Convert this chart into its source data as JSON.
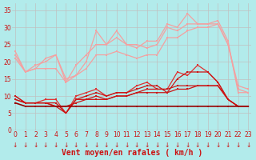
{
  "xlabel": "Vent moyen/en rafales ( km/h )",
  "bg_color": "#b2ebeb",
  "grid_color": "#c0c0c0",
  "x": [
    0,
    1,
    2,
    3,
    4,
    5,
    6,
    7,
    8,
    9,
    10,
    11,
    12,
    13,
    14,
    15,
    16,
    17,
    18,
    19,
    20,
    21,
    22,
    23
  ],
  "series": [
    {
      "y": [
        23,
        17,
        18,
        21,
        22,
        15,
        16,
        20,
        29,
        25,
        29,
        25,
        24,
        26,
        26,
        31,
        30,
        34,
        31,
        31,
        32,
        26,
        11,
        11
      ],
      "color": "#f4a0a0",
      "lw": 0.9,
      "ms": 2.0
    },
    {
      "y": [
        22,
        17,
        19,
        20,
        22,
        14,
        19,
        22,
        25,
        25,
        27,
        25,
        25,
        24,
        25,
        30,
        29,
        31,
        31,
        31,
        31,
        25,
        12,
        11
      ],
      "color": "#f4a0a0",
      "lw": 0.9,
      "ms": 2.0
    },
    {
      "y": [
        21,
        17,
        18,
        18,
        18,
        14,
        16,
        18,
        22,
        22,
        23,
        22,
        21,
        22,
        22,
        27,
        27,
        29,
        30,
        30,
        31,
        25,
        13,
        12
      ],
      "color": "#f4a0a0",
      "lw": 0.9,
      "ms": 2.0
    },
    {
      "y": [
        10,
        8,
        8,
        9,
        9,
        5,
        10,
        11,
        12,
        10,
        11,
        11,
        13,
        14,
        12,
        12,
        17,
        16,
        19,
        17,
        14,
        9,
        7,
        7
      ],
      "color": "#e03030",
      "lw": 0.9,
      "ms": 2.0
    },
    {
      "y": [
        10,
        8,
        8,
        8,
        8,
        5,
        9,
        10,
        11,
        10,
        11,
        11,
        12,
        13,
        13,
        11,
        15,
        17,
        17,
        17,
        14,
        9,
        7,
        7
      ],
      "color": "#cc1515",
      "lw": 0.9,
      "ms": 2.0
    },
    {
      "y": [
        9,
        8,
        8,
        8,
        7,
        5,
        9,
        9,
        10,
        9,
        10,
        10,
        11,
        12,
        12,
        12,
        13,
        13,
        13,
        13,
        13,
        9,
        7,
        7
      ],
      "color": "#cc1515",
      "lw": 0.9,
      "ms": 2.0
    },
    {
      "y": [
        9,
        8,
        8,
        8,
        7,
        7,
        8,
        9,
        9,
        9,
        10,
        10,
        11,
        11,
        11,
        11,
        12,
        12,
        13,
        13,
        13,
        9,
        7,
        7
      ],
      "color": "#cc1515",
      "lw": 0.9,
      "ms": 2.0
    },
    {
      "y": [
        8,
        7,
        7,
        7,
        7,
        7,
        7,
        7,
        7,
        7,
        7,
        7,
        7,
        7,
        7,
        7,
        7,
        7,
        7,
        7,
        7,
        7,
        7,
        7
      ],
      "color": "#990000",
      "lw": 1.2,
      "ms": 2.0
    }
  ],
  "xlim": [
    -0.3,
    23.3
  ],
  "ylim": [
    0,
    37
  ],
  "yticks": [
    0,
    5,
    10,
    15,
    20,
    25,
    30,
    35
  ],
  "xticks": [
    0,
    1,
    2,
    3,
    4,
    5,
    6,
    7,
    8,
    9,
    10,
    11,
    12,
    13,
    14,
    15,
    16,
    17,
    18,
    19,
    20,
    21,
    22,
    23
  ],
  "tick_color": "#cc1111",
  "tick_fontsize": 5.5,
  "xlabel_fontsize": 7,
  "xlabel_color": "#cc1111",
  "arrow_color": "#cc1111",
  "arrow_fontsize": 5.5
}
